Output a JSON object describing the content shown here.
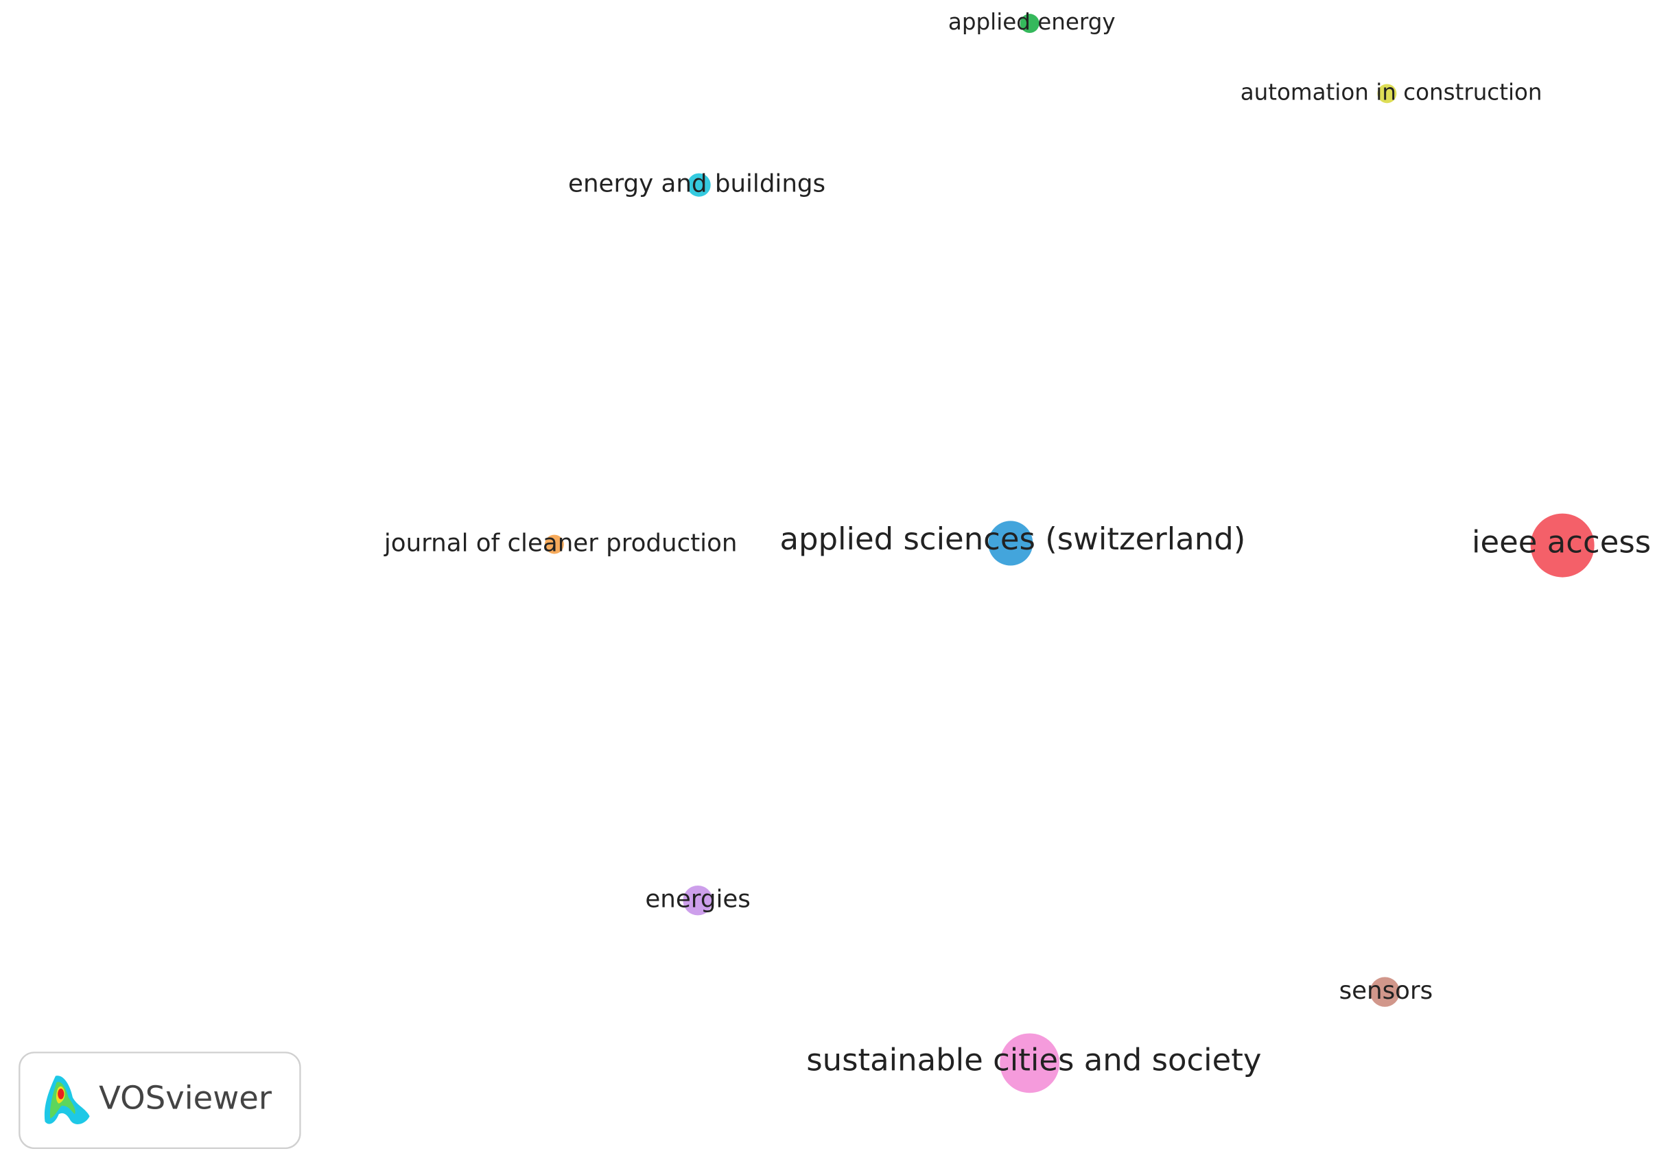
{
  "nodes": [
    {
      "label": "applied energy"
    },
    {
      "label": "automation in construction"
    },
    {
      "label": "energy and buildings"
    },
    {
      "label": "journal of cleaner production"
    },
    {
      "label": "applied sciences (switzerland)"
    },
    {
      "label": "ieee access"
    },
    {
      "label": "energies"
    },
    {
      "label": "sensors"
    },
    {
      "label": "sustainable cities and society"
    }
  ],
  "logo": {
    "text": "VOSviewer"
  }
}
